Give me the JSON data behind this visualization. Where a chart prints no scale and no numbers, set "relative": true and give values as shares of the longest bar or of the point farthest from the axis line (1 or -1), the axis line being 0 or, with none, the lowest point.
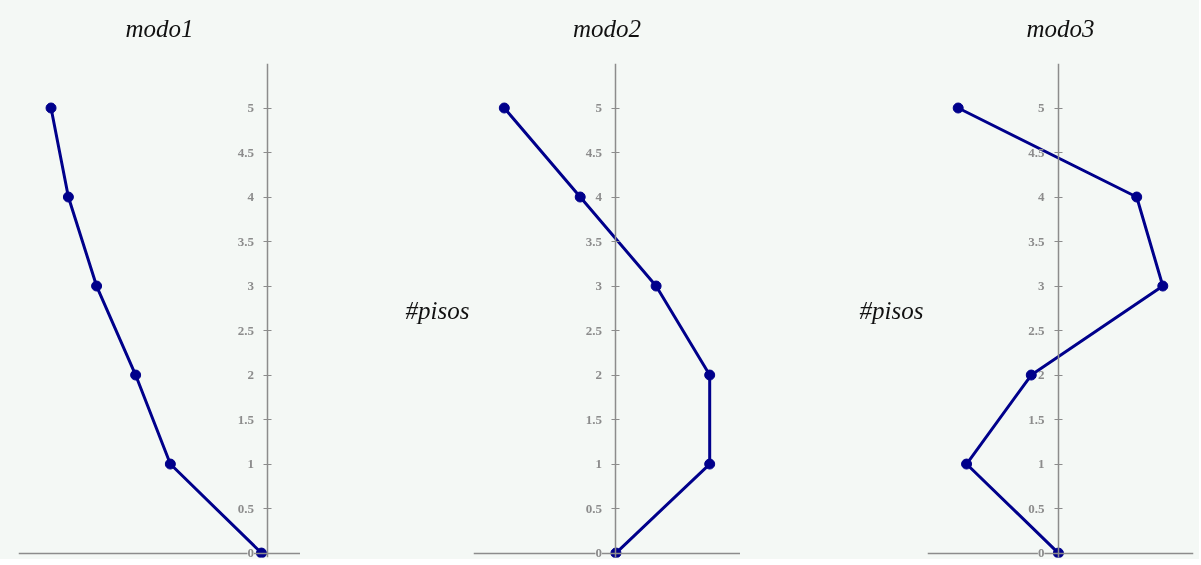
{
  "chart_data": [
    {
      "type": "line",
      "orientation": "horizontal",
      "relative": true,
      "xlabel": "modo1",
      "x": [
        0,
        1,
        2,
        3,
        4,
        5
      ],
      "values": [
        -0.03,
        -0.45,
        -0.61,
        -0.79,
        -0.92,
        -1
      ],
      "color": "#00008b",
      "ylim": [
        -0.05,
        5.5
      ],
      "yticks": [
        0,
        0.5,
        1,
        1.5,
        2,
        2.5,
        3,
        3.5,
        4,
        4.5,
        5
      ],
      "marker": "circle",
      "line_style": "solid"
    },
    {
      "type": "line",
      "orientation": "horizontal",
      "relative": true,
      "xlabel": "modo2",
      "ylabel": "#pisos",
      "x": [
        0,
        1,
        2,
        3,
        4,
        5
      ],
      "values": [
        0,
        0.84,
        0.84,
        0.36,
        -0.32,
        -1
      ],
      "color": "#00008b",
      "ylim": [
        -0.05,
        5.5
      ],
      "yticks": [
        0,
        0.5,
        1,
        1.5,
        2,
        2.5,
        3,
        3.5,
        4,
        4.5,
        5
      ],
      "marker": "circle",
      "line_style": "solid"
    },
    {
      "type": "line",
      "orientation": "horizontal",
      "relative": true,
      "xlabel": "modo3",
      "ylabel": "#pisos",
      "x": [
        0,
        1,
        2,
        3,
        4,
        5
      ],
      "values": [
        0,
        -0.88,
        -0.26,
        1,
        0.75,
        -0.96
      ],
      "color": "#00008b",
      "ylim": [
        -0.05,
        5.5
      ],
      "yticks": [
        0,
        0.5,
        1,
        1.5,
        2,
        2.5,
        3,
        3.5,
        4,
        4.5,
        5
      ],
      "marker": "circle",
      "line_style": "solid"
    }
  ]
}
